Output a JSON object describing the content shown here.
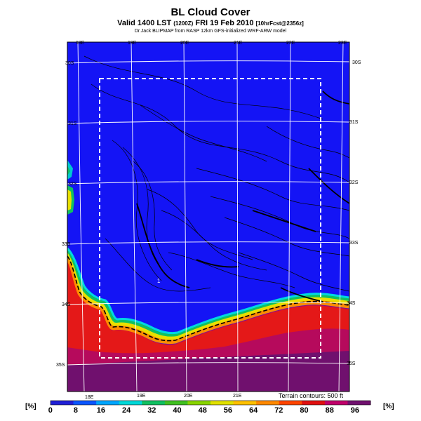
{
  "header": {
    "title": "BL Cloud Cover",
    "subtitle_main": "Valid 1400 LST",
    "subtitle_code": "(1200Z)",
    "subtitle_date": "FRI 19 Feb 2010",
    "subtitle_fcst": "[10hrFcst@2356z]",
    "credit": "Dr.Jack BLIPMAP from RASP 12km GFS-initialized WRF-ARW model"
  },
  "map": {
    "top_lon_labels": [
      "18E",
      "19E",
      "20E",
      "21E",
      "22E",
      "23E"
    ],
    "bottom_lon_labels": [
      "18E",
      "19E",
      "20E",
      "21E"
    ],
    "left_lat_labels": [
      "30S",
      "31S",
      "32S",
      "33S",
      "34S",
      "35S"
    ],
    "right_lat_labels": [
      "30S",
      "31S",
      "32S",
      "33S",
      "34S",
      "35S"
    ],
    "terrain_note": "Terrain contours: 500 ft",
    "contour_label": "1"
  },
  "colorbar": {
    "unit": "[%]",
    "ticks": [
      "0",
      "8",
      "16",
      "24",
      "32",
      "40",
      "48",
      "56",
      "64",
      "72",
      "80",
      "88",
      "96"
    ],
    "colors": [
      "#1f1fd6",
      "#0a55ff",
      "#00a5ff",
      "#00d8d8",
      "#10c060",
      "#40c020",
      "#88d400",
      "#e0e000",
      "#ffc000",
      "#ff8800",
      "#ff4400",
      "#e01010",
      "#c0006a",
      "#70106e"
    ]
  },
  "colors": {
    "sea": "#1414f5",
    "land_red": "#e41818",
    "land_deep": "#b60a5c",
    "land_purple": "#70106e"
  }
}
